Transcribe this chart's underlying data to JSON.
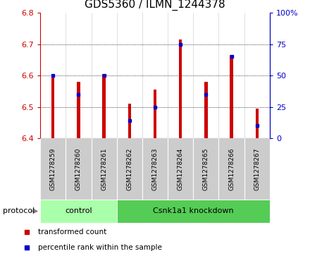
{
  "title": "GDS5360 / ILMN_1244378",
  "samples": [
    "GSM1278259",
    "GSM1278260",
    "GSM1278261",
    "GSM1278262",
    "GSM1278263",
    "GSM1278264",
    "GSM1278265",
    "GSM1278266",
    "GSM1278267"
  ],
  "bar_base": 6.4,
  "bar_tops": [
    6.605,
    6.58,
    6.605,
    6.51,
    6.555,
    6.715,
    6.58,
    6.665,
    6.495
  ],
  "percentile_vals": [
    50,
    35,
    50,
    14,
    25,
    75,
    35,
    65,
    10
  ],
  "red_color": "#cc0000",
  "blue_color": "#0000cc",
  "ylim_left": [
    6.4,
    6.8
  ],
  "ylim_right": [
    0,
    100
  ],
  "yticks_left": [
    6.4,
    6.5,
    6.6,
    6.7,
    6.8
  ],
  "yticks_right": [
    0,
    25,
    50,
    75,
    100
  ],
  "ytick_labels_right": [
    "0",
    "25",
    "50",
    "75",
    "100%"
  ],
  "control_count": 3,
  "knockdown_count": 6,
  "control_label": "control",
  "knockdown_label": "Csnk1a1 knockdown",
  "protocol_label": "protocol",
  "legend_red": "transformed count",
  "legend_blue": "percentile rank within the sample",
  "bar_width": 0.12,
  "group_bg_control": "#aaffaa",
  "group_bg_knockdown": "#55cc55",
  "tick_area_bg": "#cccccc",
  "bar_area_bg": "#ffffff",
  "title_fontsize": 11,
  "tick_fontsize": 8,
  "sample_fontsize": 6.5,
  "proto_fontsize": 8
}
